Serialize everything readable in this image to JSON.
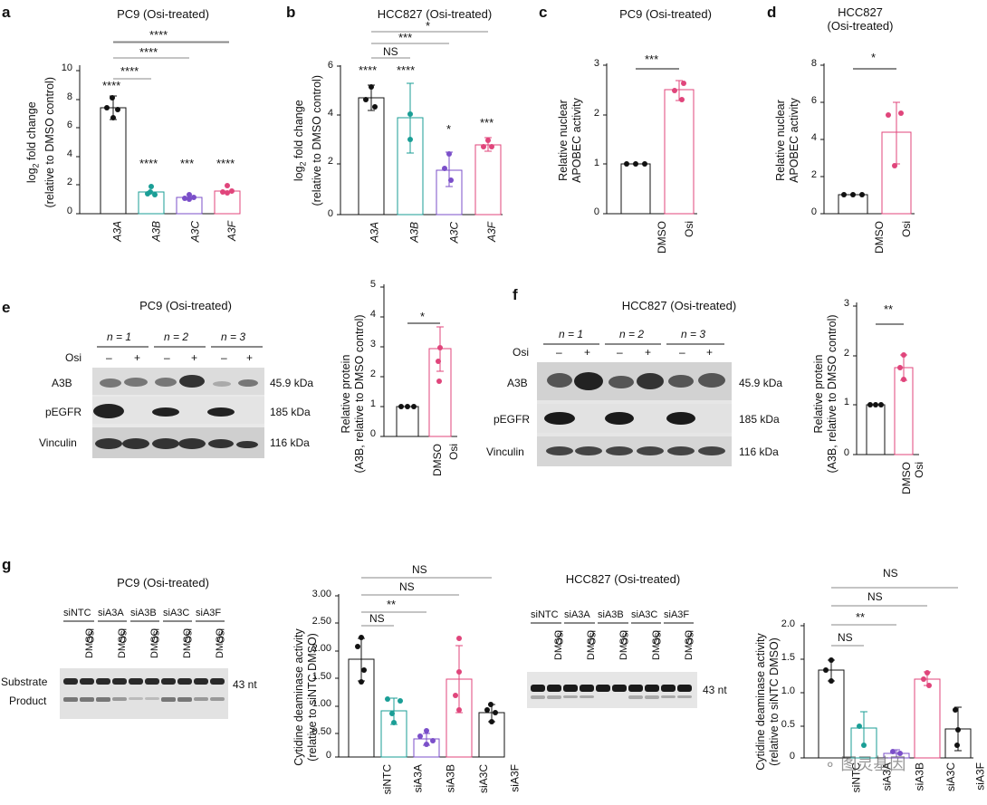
{
  "panels": {
    "a": {
      "label": "a",
      "title": "PC9 (Osi-treated)",
      "ylabel_main": "log",
      "ylabel_sub": "2",
      "ylabel_rest": " fold change",
      "ylabel2": "(relative to DMSO control)",
      "yticks": [
        "0",
        "2",
        "4",
        "6",
        "8",
        "10"
      ],
      "categories": [
        "A3A",
        "A3B",
        "A3C",
        "A3F"
      ],
      "bar_stars": [
        "****",
        "****",
        "***",
        "****"
      ],
      "bracket_stars": [
        "****",
        "****",
        "****",
        "****"
      ]
    },
    "b": {
      "label": "b",
      "title": "HCC827 (Osi-treated)",
      "ylabel_main": "log",
      "ylabel_sub": "2",
      "ylabel_rest": " fold change",
      "ylabel2": "(relative to DMSO control)",
      "yticks": [
        "0",
        "2",
        "4",
        "6"
      ],
      "categories": [
        "A3A",
        "A3B",
        "A3C",
        "A3F"
      ],
      "bar_stars": [
        "****",
        "****",
        "*",
        "***"
      ],
      "bracket_stars": [
        "NS",
        "***",
        "*"
      ]
    },
    "c": {
      "label": "c",
      "title": "PC9 (Osi-treated)",
      "ylabel": "Relative nuclear",
      "ylabel2": "APOBEC activity",
      "yticks": [
        "0",
        "1",
        "2",
        "3"
      ],
      "categories": [
        "DMSO",
        "Osi"
      ],
      "star": "***"
    },
    "d": {
      "label": "d",
      "title": "HCC827",
      "title2": "(Osi-treated)",
      "ylabel": "Relative nuclear",
      "ylabel2": "APOBEC activity",
      "yticks": [
        "0",
        "2",
        "4",
        "6",
        "8"
      ],
      "categories": [
        "DMSO",
        "Osi"
      ],
      "star": "*"
    },
    "e": {
      "label": "e",
      "title": "PC9 (Osi-treated)",
      "n_labels": [
        "n = 1",
        "n = 2",
        "n = 3"
      ],
      "osi_label": "Osi",
      "signs": [
        "–",
        "+",
        "–",
        "+",
        "–",
        "+"
      ],
      "rows": [
        "A3B",
        "pEGFR",
        "Vinculin"
      ],
      "kda": [
        "45.9 kDa",
        "185 kDa",
        "116 kDa"
      ],
      "ylabel": "Relative protein",
      "ylabel2": "(A3B, relative to DMSO control)",
      "yticks": [
        "0",
        "1",
        "2",
        "3",
        "4",
        "5"
      ],
      "categories": [
        "DMSO",
        "Osi"
      ],
      "star": "*"
    },
    "f": {
      "label": "f",
      "title": "HCC827 (Osi-treated)",
      "n_labels": [
        "n = 1",
        "n = 2",
        "n = 3"
      ],
      "osi_label": "Osi",
      "signs": [
        "–",
        "+",
        "–",
        "+",
        "–",
        "+"
      ],
      "rows": [
        "A3B",
        "pEGFR",
        "Vinculin"
      ],
      "kda": [
        "45.9 kDa",
        "185 kDa",
        "116 kDa"
      ],
      "ylabel": "Relative protein",
      "ylabel2": "(A3B, relative to DMSO control)",
      "yticks": [
        "0",
        "1",
        "2",
        "3"
      ],
      "categories": [
        "DMSO",
        "Osi"
      ],
      "star": "**"
    },
    "g": {
      "label": "g",
      "title_left": "PC9 (Osi-treated)",
      "title_right": "HCC827 (Osi-treated)",
      "groups": [
        "siNTC",
        "siA3A",
        "siA3B",
        "siA3C",
        "siA3F"
      ],
      "lanes": [
        "DMSO",
        "Osi"
      ],
      "substrate": "Substrate",
      "product": "Product",
      "nt": "43 nt",
      "ylabel": "Cytidine deaminase activity",
      "ylabel2": "(relative to siNTC DMSO)",
      "left_yticks": [
        "0",
        "0.50",
        "1.00",
        "1.50",
        "2.00",
        "2.50",
        "3.00"
      ],
      "right_yticks": [
        "0",
        "0.5",
        "1.0",
        "1.5",
        "2.0"
      ],
      "categories": [
        "siNTC",
        "siA3A",
        "siA3B",
        "siA3C",
        "siA3F"
      ],
      "left_brackets": [
        "NS",
        "NS",
        "**",
        "NS"
      ],
      "right_brackets": [
        "NS",
        "NS",
        "**",
        "NS"
      ]
    }
  },
  "watermark": "图灵基因",
  "chart_data": [
    {
      "type": "bar",
      "panel": "a",
      "categories": [
        "A3A",
        "A3B",
        "A3C",
        "A3F"
      ],
      "values": [
        7.2,
        1.45,
        1.1,
        1.6
      ],
      "ylim": [
        0,
        10
      ]
    },
    {
      "type": "bar",
      "panel": "b",
      "categories": [
        "A3A",
        "A3B",
        "A3C",
        "A3F"
      ],
      "values": [
        4.65,
        3.85,
        1.75,
        2.75
      ],
      "ylim": [
        0,
        6
      ]
    },
    {
      "type": "bar",
      "panel": "c",
      "categories": [
        "DMSO",
        "Osi"
      ],
      "values": [
        1.0,
        2.5
      ],
      "ylim": [
        0,
        3
      ]
    },
    {
      "type": "bar",
      "panel": "d",
      "categories": [
        "DMSO",
        "Osi"
      ],
      "values": [
        1.0,
        4.35
      ],
      "ylim": [
        0,
        8
      ]
    },
    {
      "type": "bar",
      "panel": "e",
      "categories": [
        "DMSO",
        "Osi"
      ],
      "values": [
        1.0,
        2.95
      ],
      "ylim": [
        0,
        5
      ]
    },
    {
      "type": "bar",
      "panel": "f",
      "categories": [
        "DMSO",
        "Osi"
      ],
      "values": [
        1.0,
        1.75
      ],
      "ylim": [
        0,
        3
      ]
    },
    {
      "type": "bar",
      "panel": "g-left",
      "categories": [
        "siNTC",
        "siA3A",
        "siA3B",
        "siA3C",
        "siA3F"
      ],
      "values": [
        1.78,
        0.84,
        0.33,
        1.42,
        0.8
      ],
      "ylim": [
        0,
        3
      ]
    },
    {
      "type": "bar",
      "panel": "g-right",
      "categories": [
        "siNTC",
        "siA3A",
        "siA3B",
        "siA3C",
        "siA3F"
      ],
      "values": [
        1.33,
        0.45,
        0.07,
        1.18,
        0.44
      ],
      "ylim": [
        0,
        2
      ]
    }
  ]
}
